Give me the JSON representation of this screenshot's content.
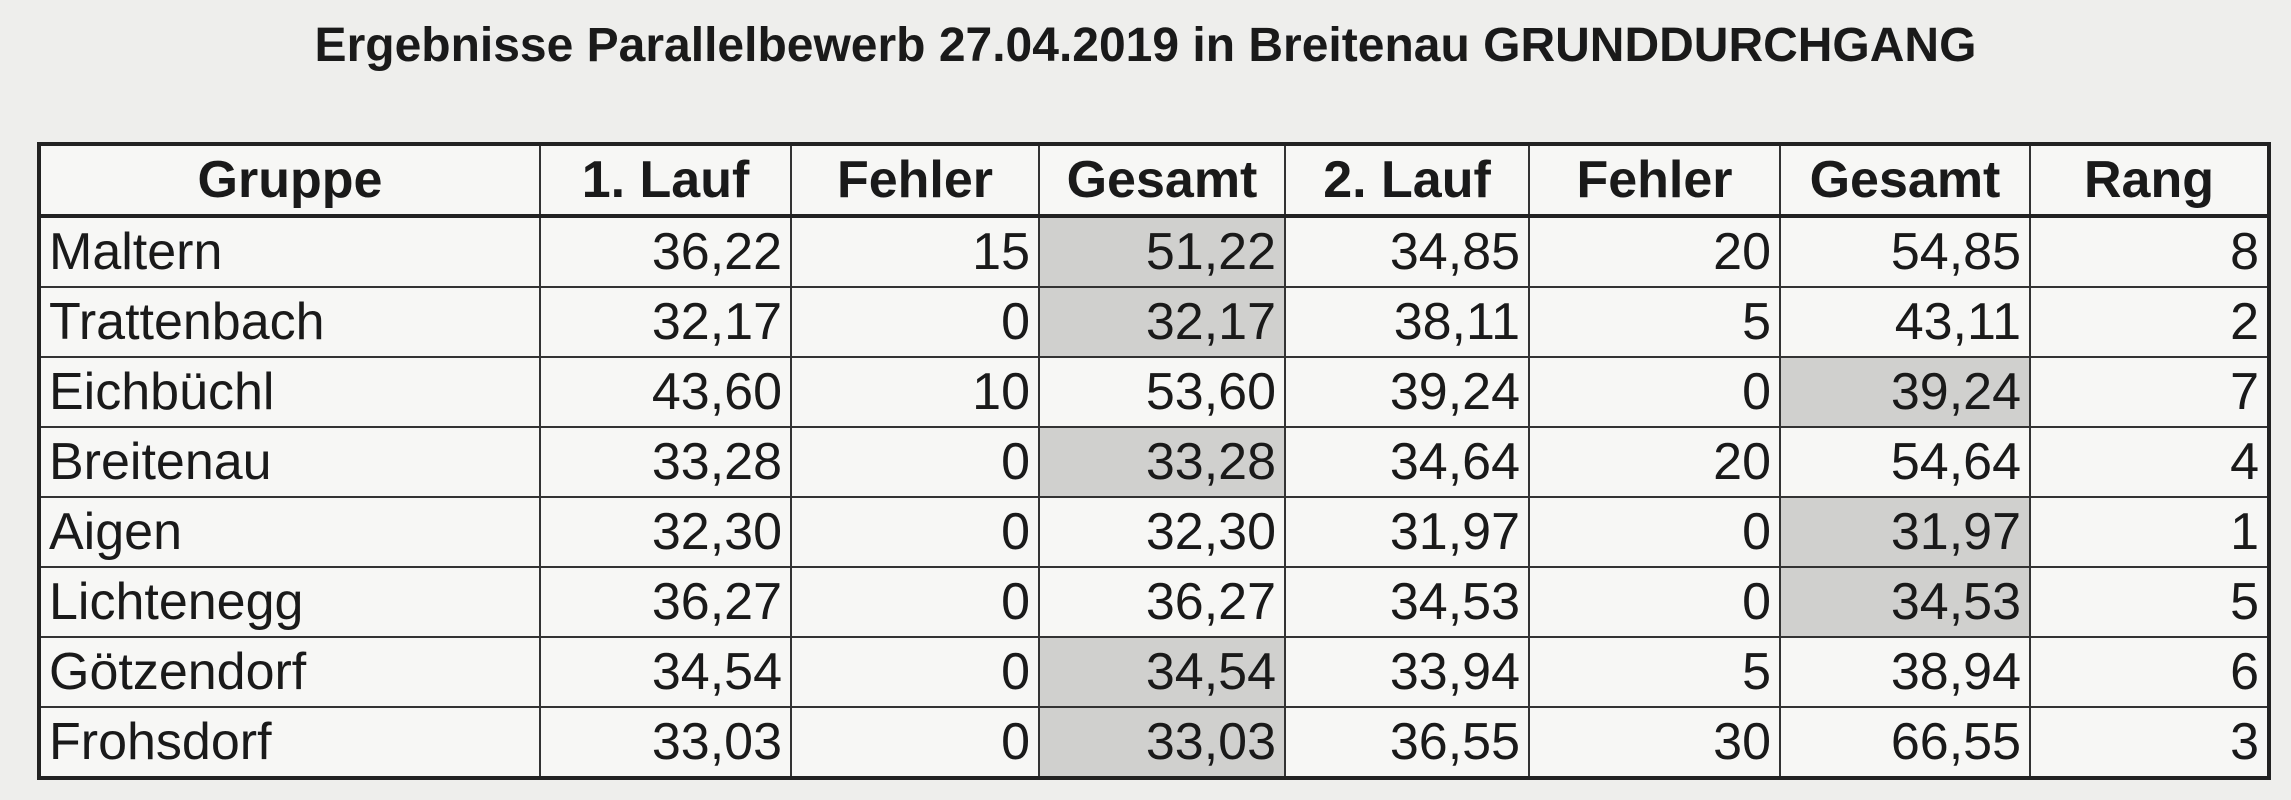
{
  "header": {
    "title": "Ergebnisse Parallelbewerb 27.04.2019 in Breitenau GRUNDDURCHGANG"
  },
  "table": {
    "headers": [
      "Gruppe",
      "1. Lauf",
      "Fehler",
      "Gesamt",
      "2. Lauf",
      "Fehler",
      "Gesamt",
      "Rang"
    ],
    "rows": [
      [
        "Maltern",
        "36,22",
        "15",
        "51,22",
        "34,85",
        "20",
        "54,85",
        "8"
      ],
      [
        "Trattenbach",
        "32,17",
        "0",
        "32,17",
        "38,11",
        "5",
        "43,11",
        "2"
      ],
      [
        "Eichbüchl",
        "43,60",
        "10",
        "53,60",
        "39,24",
        "0",
        "39,24",
        "7"
      ],
      [
        "Breitenau",
        "33,28",
        "0",
        "33,28",
        "34,64",
        "20",
        "54,64",
        "4"
      ],
      [
        "Aigen",
        "32,30",
        "0",
        "32,30",
        "31,97",
        "0",
        "31,97",
        "1"
      ],
      [
        "Lichtenegg",
        "36,27",
        "0",
        "36,27",
        "34,53",
        "0",
        "34,53",
        "5"
      ],
      [
        "Götzendorf",
        "34,54",
        "0",
        "34,54",
        "33,94",
        "5",
        "38,94",
        "6"
      ],
      [
        "Frohsdorf",
        "33,03",
        "0",
        "33,03",
        "36,55",
        "30",
        "66,55",
        "3"
      ]
    ]
  }
}
